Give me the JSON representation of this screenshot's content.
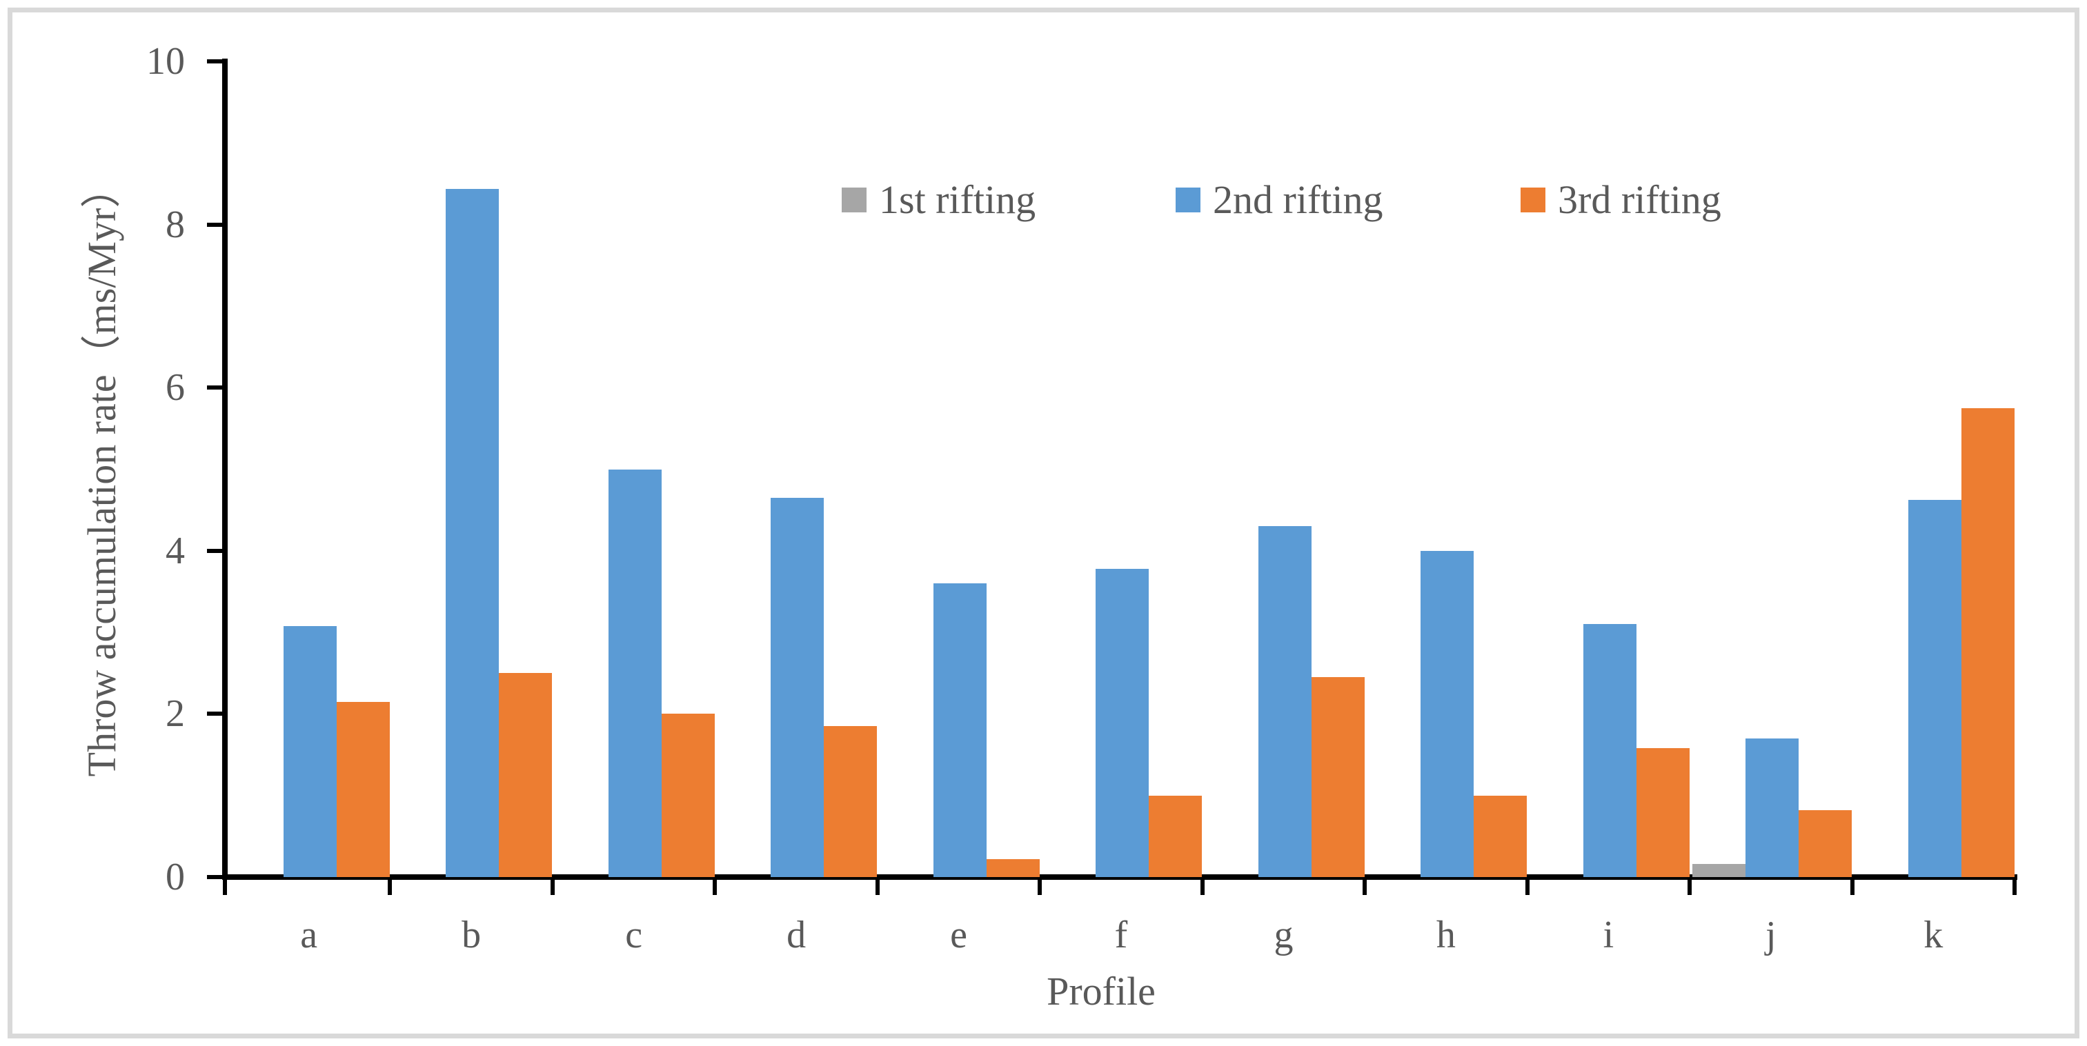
{
  "chart_data": {
    "type": "bar",
    "title": "",
    "categories": [
      "a",
      "b",
      "c",
      "d",
      "e",
      "f",
      "g",
      "h",
      "i",
      "j",
      "k"
    ],
    "series": [
      {
        "name": "1st rifting",
        "color": "#A6A6A6",
        "values": [
          0,
          0,
          0,
          0,
          0,
          0,
          0,
          0,
          0,
          0.16,
          0
        ]
      },
      {
        "name": "2nd rifting",
        "color": "#5B9BD5",
        "values": [
          3.08,
          8.44,
          5.0,
          4.65,
          3.6,
          3.78,
          4.3,
          4.0,
          3.1,
          1.7,
          4.62
        ]
      },
      {
        "name": "3rd rifting",
        "color": "#ED7D31",
        "values": [
          2.15,
          2.5,
          2.0,
          1.85,
          0.22,
          1.0,
          2.45,
          1.0,
          1.58,
          0.82,
          5.75
        ]
      }
    ],
    "xlabel": "Profile",
    "ylabel": "Throw accumulation rate（ms/Myr）",
    "ylim": [
      0,
      10
    ],
    "yticks": [
      0,
      2,
      4,
      6,
      8,
      10
    ],
    "legend_position": "top-center",
    "grid": false
  },
  "colors": {
    "axis": "#000000",
    "text": "#595959",
    "frame_border": "#D9D9D9",
    "background": "#FFFFFF"
  }
}
